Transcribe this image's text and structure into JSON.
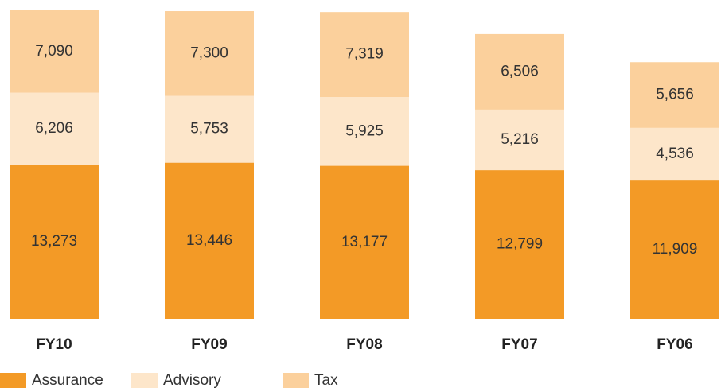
{
  "chart_data": {
    "type": "stacked_bar",
    "categories": [
      "FY10",
      "FY09",
      "FY08",
      "FY07",
      "FY06"
    ],
    "series": [
      {
        "name": "Assurance",
        "color": "#f39a26",
        "values": [
          13273,
          13446,
          13177,
          12799,
          11909
        ],
        "value_labels": [
          "13,273",
          "13,446",
          "13,177",
          "12,799",
          "11,909"
        ]
      },
      {
        "name": "Advisory",
        "color": "#fde6ca",
        "values": [
          6206,
          5753,
          5925,
          5216,
          4536
        ],
        "value_labels": [
          "6,206",
          "5,753",
          "5,925",
          "5,216",
          "4,536"
        ]
      },
      {
        "name": "Tax",
        "color": "#fbd09c",
        "values": [
          7090,
          7300,
          7319,
          6506,
          5656
        ],
        "value_labels": [
          "7,090",
          "7,300",
          "7,319",
          "6,506",
          "5,656"
        ]
      }
    ]
  }
}
